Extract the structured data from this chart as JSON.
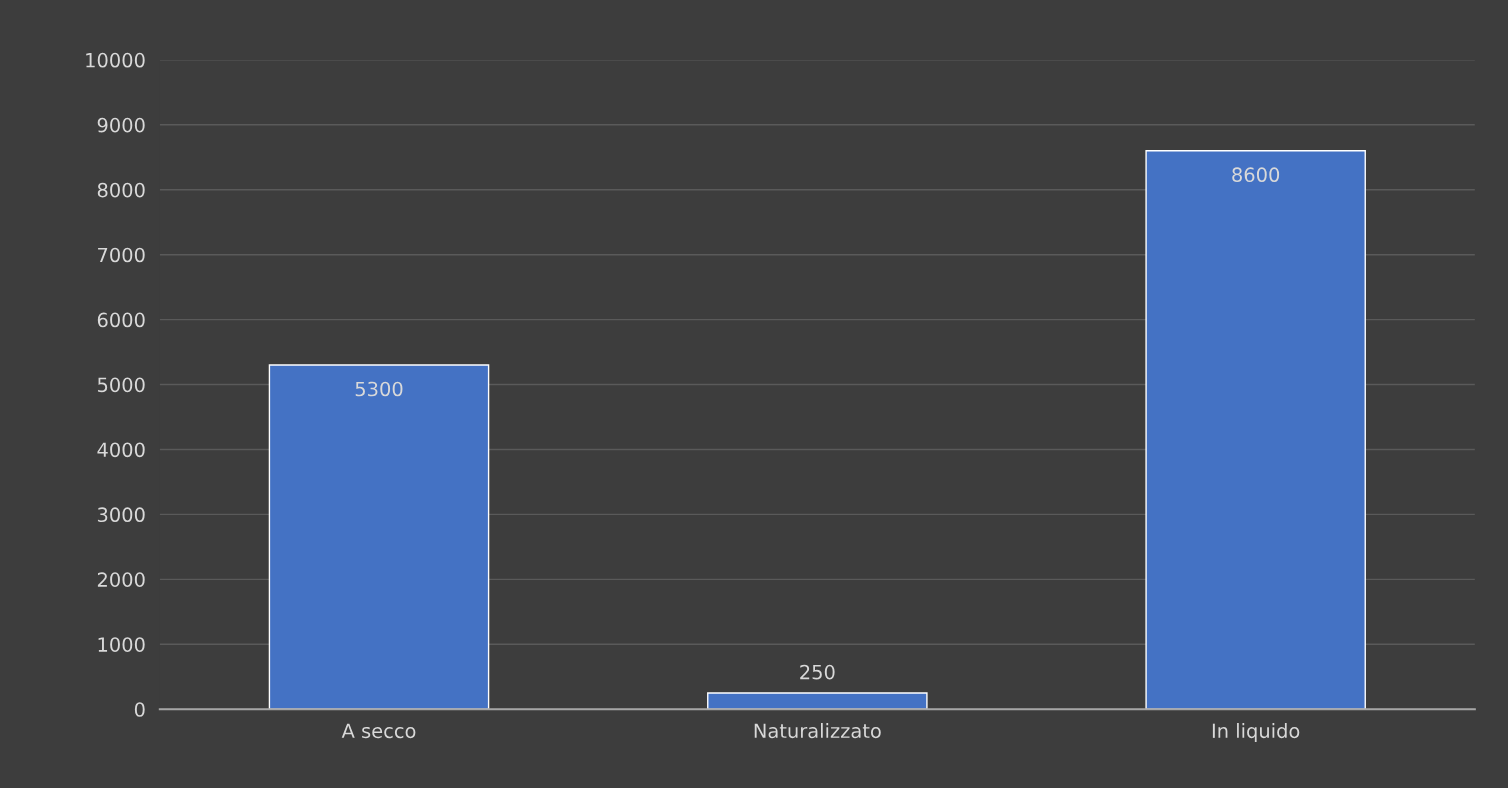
{
  "chart_data": {
    "type": "bar",
    "categories": [
      "A secco",
      "Naturalizzato",
      "In liquido"
    ],
    "values": [
      5300,
      250,
      8600
    ],
    "color": "#4472c4",
    "ylim": [
      0,
      10000
    ],
    "yticks": [
      0,
      1000,
      2000,
      3000,
      4000,
      5000,
      6000,
      7000,
      8000,
      9000,
      10000
    ],
    "grid": "y",
    "data_labels": true
  }
}
